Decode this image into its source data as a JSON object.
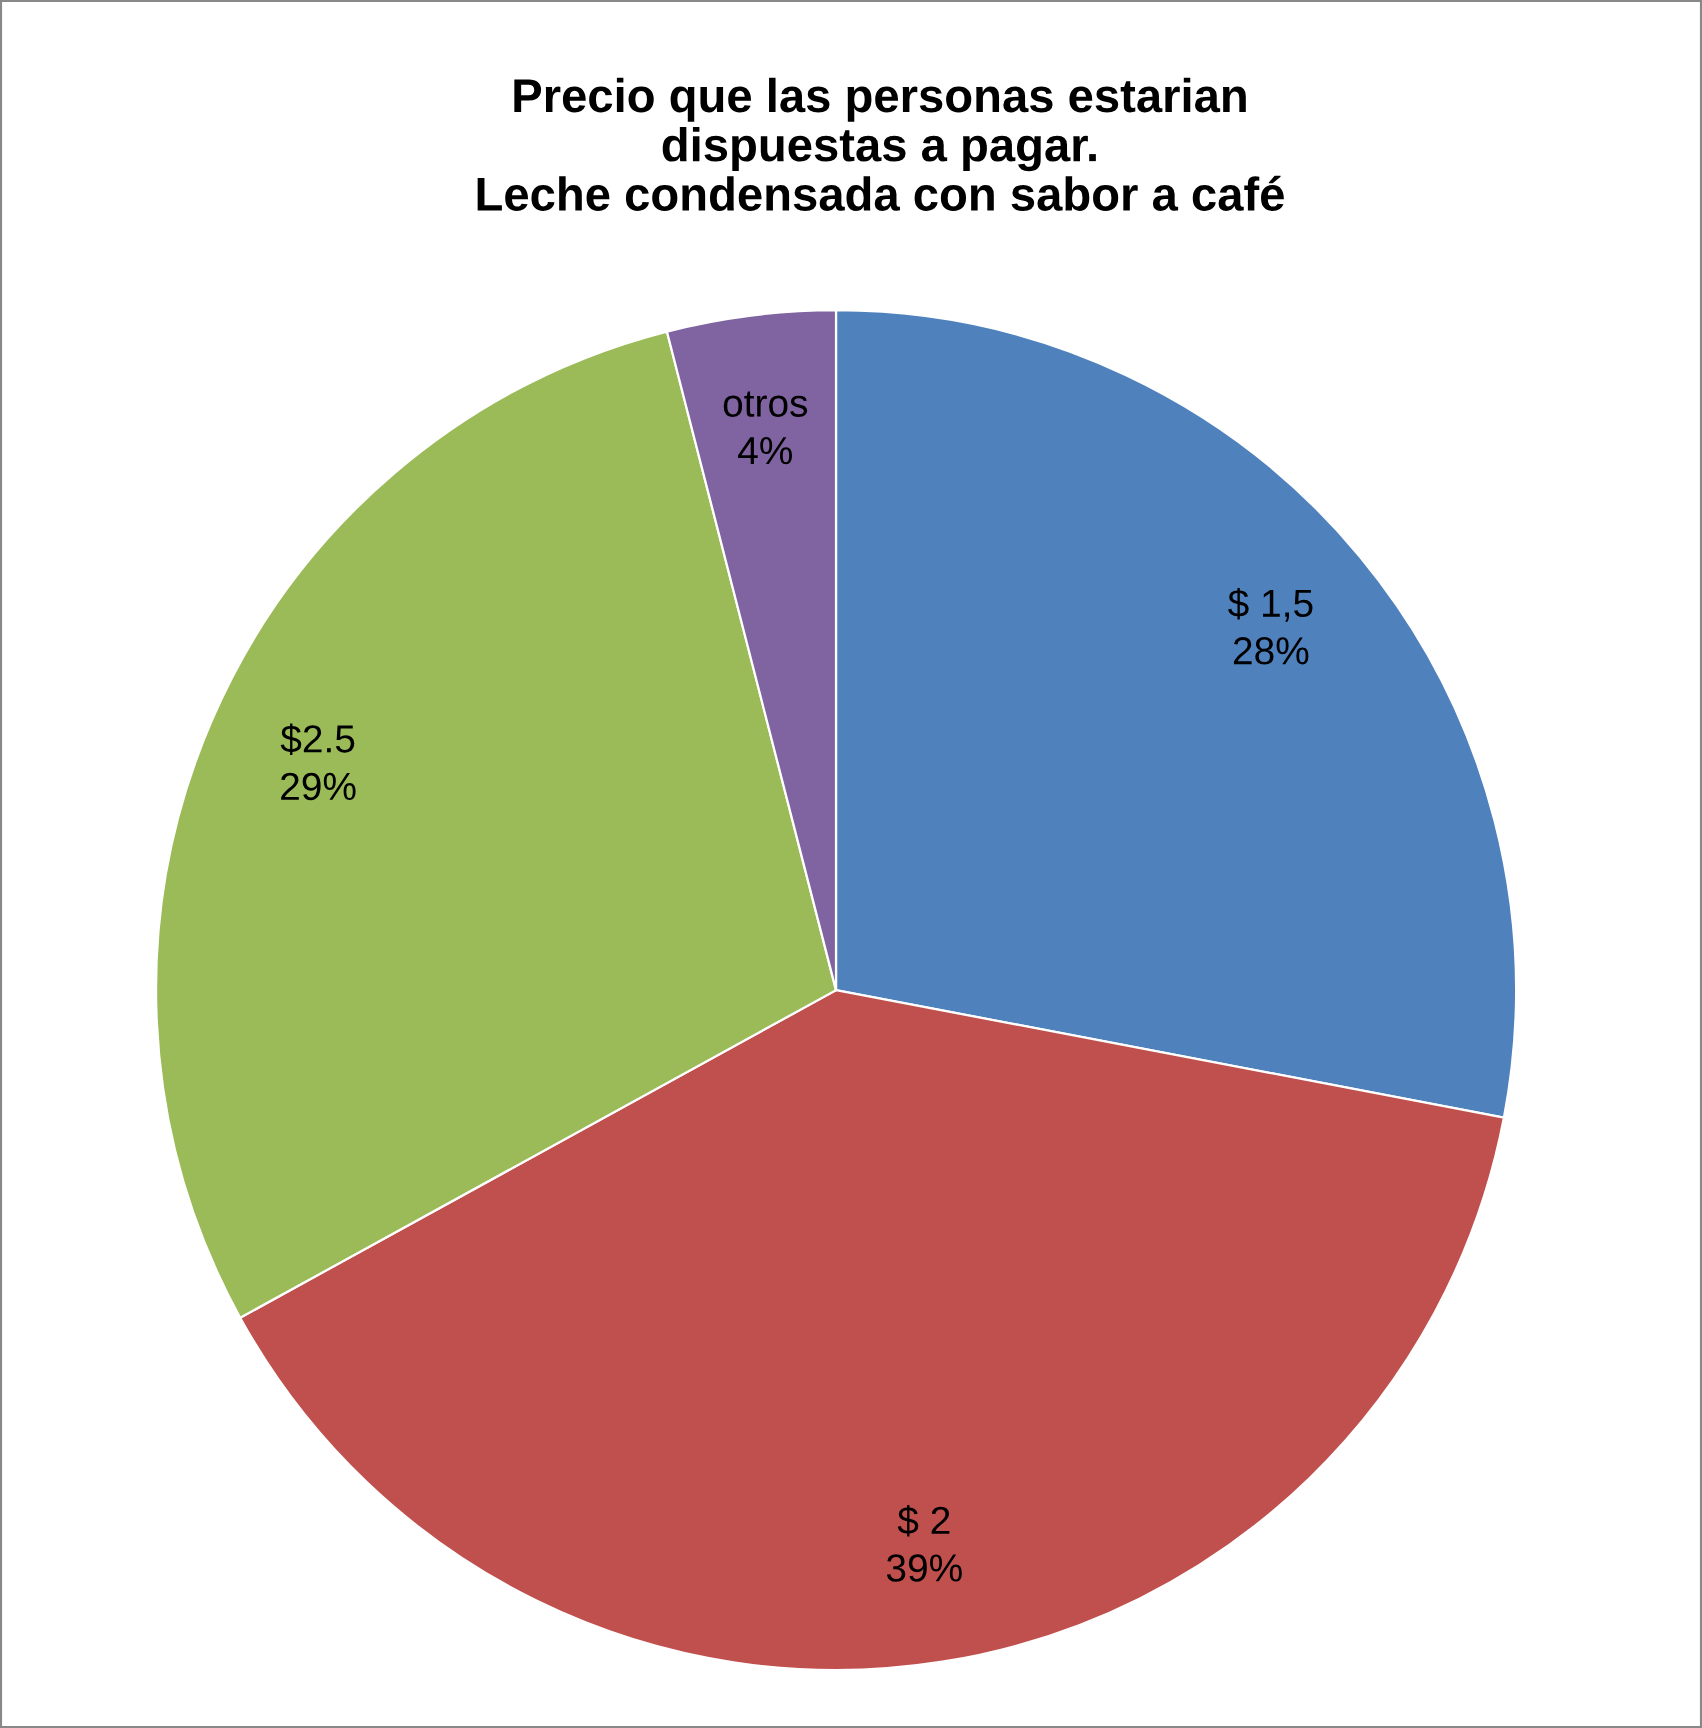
{
  "chart_data": {
    "type": "pie",
    "title": "Precio que las personas estarian\ndispuestas a pagar.\nLeche condensada con sabor a café",
    "categories": [
      "$ 1,5",
      "$ 2",
      "$2.5",
      "otros"
    ],
    "values": [
      28,
      39,
      29,
      4
    ],
    "value_labels": [
      "28%",
      "39%",
      "29%",
      "4%"
    ],
    "colors": [
      "#4f81bd",
      "#c0504d",
      "#9bbb59",
      "#8064a2"
    ],
    "legend": false
  }
}
